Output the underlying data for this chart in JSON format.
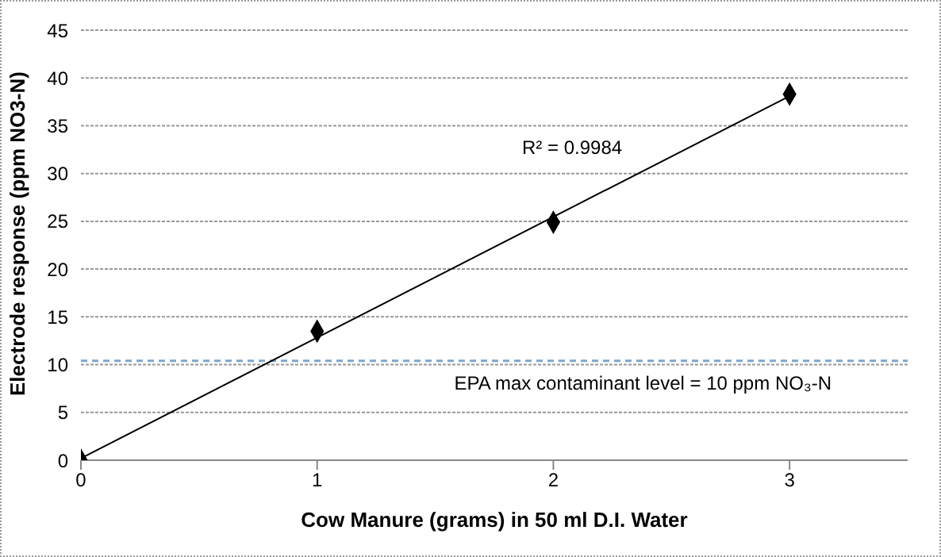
{
  "chart_data": {
    "type": "scatter",
    "xlabel": "Cow Manure (grams) in 50 ml D.I. Water",
    "ylabel": "Electrode response (ppm NO3-N)",
    "xlim": [
      0,
      3.5
    ],
    "xticks": [
      0,
      1,
      2,
      3
    ],
    "ylim": [
      0,
      45
    ],
    "yticks": [
      0,
      5,
      10,
      15,
      20,
      25,
      30,
      35,
      40,
      45
    ],
    "grid": "y",
    "marker": "diamond",
    "series": [
      {
        "color": "#000000",
        "x": [
          0,
          1,
          2,
          3
        ],
        "values": [
          0,
          13.5,
          24.9,
          38.3
        ]
      },
      {
        "type": "line",
        "color": "#000000",
        "x": [
          0,
          3
        ],
        "values": [
          0.2,
          38.1
        ],
        "marker": "none"
      }
    ],
    "ref_lines": [
      {
        "axis": "y",
        "value": 10.4,
        "label": "EPA max contaminant level = 10 ppm NO₃-N",
        "color": "#7fa6c9",
        "line_style": "dashed"
      }
    ],
    "annotations": [
      "R² = 0.9984"
    ]
  }
}
